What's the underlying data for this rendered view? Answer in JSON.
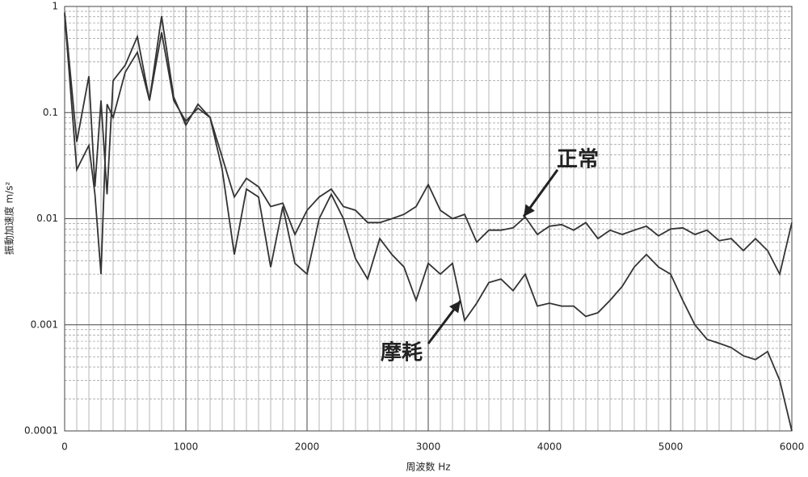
{
  "chart_data": {
    "type": "line",
    "x_label": "周波数 Hz",
    "y_label": "振動加速度 m/s²",
    "x": [
      0,
      100,
      200,
      250,
      300,
      350,
      400,
      500,
      600,
      700,
      800,
      900,
      1000,
      1100,
      1200,
      1300,
      1400,
      1500,
      1600,
      1700,
      1800,
      1900,
      2000,
      2100,
      2200,
      2300,
      2400,
      2500,
      2600,
      2700,
      2800,
      2900,
      3000,
      3100,
      3200,
      3300,
      3400,
      3500,
      3600,
      3700,
      3800,
      3900,
      4000,
      4100,
      4200,
      4300,
      4400,
      4500,
      4600,
      4700,
      4800,
      4900,
      5000,
      5100,
      5200,
      5300,
      5400,
      5500,
      5600,
      5700,
      5800,
      5900,
      6000
    ],
    "series": [
      {
        "name": "正常",
        "color": "#333333",
        "values": [
          0.88,
          0.053,
          0.22,
          0.02,
          0.13,
          0.017,
          0.2,
          0.28,
          0.52,
          0.13,
          0.57,
          0.13,
          0.083,
          0.11,
          0.09,
          0.038,
          0.016,
          0.024,
          0.02,
          0.013,
          0.014,
          0.0071,
          0.012,
          0.016,
          0.019,
          0.013,
          0.012,
          0.0092,
          0.0092,
          0.01,
          0.011,
          0.013,
          0.021,
          0.012,
          0.01,
          0.011,
          0.006,
          0.0078,
          0.0078,
          0.0082,
          0.0104,
          0.0071,
          0.0085,
          0.0088,
          0.0078,
          0.0092,
          0.0065,
          0.0078,
          0.0071,
          0.0078,
          0.0085,
          0.0069,
          0.008,
          0.0082,
          0.0071,
          0.0078,
          0.0062,
          0.0065,
          0.005,
          0.0065,
          0.005,
          0.003,
          0.0092
        ]
      },
      {
        "name": "摩耗",
        "color": "#333333",
        "values": [
          0.84,
          0.029,
          0.049,
          0.017,
          0.003,
          0.12,
          0.09,
          0.24,
          0.37,
          0.13,
          0.81,
          0.14,
          0.076,
          0.12,
          0.09,
          0.029,
          0.0046,
          0.019,
          0.016,
          0.0035,
          0.013,
          0.0038,
          0.003,
          0.01,
          0.017,
          0.01,
          0.0042,
          0.0027,
          0.0065,
          0.0046,
          0.0035,
          0.0017,
          0.0038,
          0.003,
          0.0038,
          0.0011,
          0.0016,
          0.0025,
          0.0027,
          0.0021,
          0.003,
          0.0015,
          0.0016,
          0.0015,
          0.0015,
          0.0012,
          0.0013,
          0.0017,
          0.0023,
          0.0035,
          0.0046,
          0.0035,
          0.003,
          0.0017,
          0.001,
          0.00073,
          0.00067,
          0.00061,
          0.00051,
          0.00047,
          0.00056,
          0.0003,
          0.0001
        ]
      }
    ],
    "xlim": [
      0,
      6000
    ],
    "xticks": [
      0,
      1000,
      2000,
      3000,
      4000,
      5000,
      6000
    ],
    "ylim": [
      0.0001,
      1
    ],
    "yticks": [
      0.0001,
      0.001,
      0.01,
      0.1,
      1
    ],
    "y_log": true,
    "grid": true,
    "minor_grid": true
  }
}
